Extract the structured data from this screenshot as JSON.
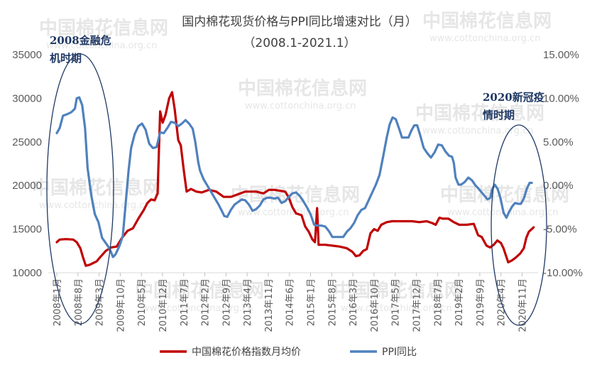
{
  "chart_data": {
    "type": "line",
    "title": "国内棉花现货价格与PPI同比增速对比（月）",
    "subtitle": "（2008.1-2021.1）",
    "watermark": {
      "main": "中国棉花信息网",
      "url": "www.cottonchina.org.cn"
    },
    "y_left": {
      "ticks": [
        "35000",
        "30000",
        "25000",
        "20000",
        "15000",
        "10000"
      ],
      "min": 10000,
      "max": 35000
    },
    "y_right": {
      "ticks": [
        "15.00%",
        "10.00%",
        "5.00%",
        "0.00%",
        "-5.00%",
        "-10.00%"
      ],
      "min": -10,
      "max": 15
    },
    "x_range": [
      2008.0,
      2021.0
    ],
    "x_ticks": [
      "2008年1月",
      "2008年8月",
      "2009年3月",
      "2009年10月",
      "2010年5月",
      "2010年12月",
      "2011年7月",
      "2012年2月",
      "2012年9月",
      "2013年4月",
      "2013年11月",
      "2014年6月",
      "2015年1月",
      "2015年8月",
      "2016年3月",
      "2016年10月",
      "2017年5月",
      "2017年12月",
      "2018年7月",
      "2019年2月",
      "2019年9月",
      "2020年4月",
      "2020年11月"
    ],
    "annotations": [
      {
        "text_lines": [
          "2008金融危",
          "机时期"
        ]
      },
      {
        "text_lines": [
          "2020新冠疫",
          "情时期"
        ]
      }
    ],
    "series": [
      {
        "name": "中国棉花价格指数月均价",
        "axis": "left",
        "color": "#C00000",
        "points": [
          [
            2008.0,
            13500
          ],
          [
            2008.08,
            13800
          ],
          [
            2008.25,
            13850
          ],
          [
            2008.45,
            13800
          ],
          [
            2008.55,
            13500
          ],
          [
            2008.65,
            12800
          ],
          [
            2008.72,
            11800
          ],
          [
            2008.8,
            10800
          ],
          [
            2008.9,
            10900
          ],
          [
            2009.0,
            11100
          ],
          [
            2009.1,
            11300
          ],
          [
            2009.2,
            11800
          ],
          [
            2009.35,
            12500
          ],
          [
            2009.5,
            12900
          ],
          [
            2009.65,
            13000
          ],
          [
            2009.8,
            14000
          ],
          [
            2009.95,
            14800
          ],
          [
            2010.1,
            15100
          ],
          [
            2010.25,
            16200
          ],
          [
            2010.4,
            17200
          ],
          [
            2010.5,
            18000
          ],
          [
            2010.6,
            18400
          ],
          [
            2010.7,
            18300
          ],
          [
            2010.78,
            19100
          ],
          [
            2010.85,
            28500
          ],
          [
            2010.92,
            27200
          ],
          [
            2011.0,
            28100
          ],
          [
            2011.1,
            30000
          ],
          [
            2011.18,
            30700
          ],
          [
            2011.25,
            28800
          ],
          [
            2011.35,
            25200
          ],
          [
            2011.42,
            24600
          ],
          [
            2011.5,
            21800
          ],
          [
            2011.58,
            19300
          ],
          [
            2011.7,
            19600
          ],
          [
            2011.85,
            19300
          ],
          [
            2012.0,
            19200
          ],
          [
            2012.2,
            19500
          ],
          [
            2012.4,
            19300
          ],
          [
            2012.6,
            18700
          ],
          [
            2012.8,
            18700
          ],
          [
            2013.0,
            19000
          ],
          [
            2013.2,
            19300
          ],
          [
            2013.5,
            19300
          ],
          [
            2013.7,
            19100
          ],
          [
            2013.85,
            19500
          ],
          [
            2014.0,
            19500
          ],
          [
            2014.15,
            19400
          ],
          [
            2014.3,
            19300
          ],
          [
            2014.4,
            18600
          ],
          [
            2014.5,
            17500
          ],
          [
            2014.6,
            16800
          ],
          [
            2014.75,
            16600
          ],
          [
            2014.85,
            15300
          ],
          [
            2014.95,
            14700
          ],
          [
            2015.05,
            13800
          ],
          [
            2015.12,
            13500
          ],
          [
            2015.18,
            17400
          ],
          [
            2015.22,
            13200
          ],
          [
            2015.4,
            13200
          ],
          [
            2015.6,
            13100
          ],
          [
            2015.8,
            13000
          ],
          [
            2016.0,
            12800
          ],
          [
            2016.15,
            12400
          ],
          [
            2016.25,
            11900
          ],
          [
            2016.35,
            12000
          ],
          [
            2016.45,
            12500
          ],
          [
            2016.55,
            12700
          ],
          [
            2016.65,
            14500
          ],
          [
            2016.75,
            15000
          ],
          [
            2016.85,
            14800
          ],
          [
            2016.95,
            15500
          ],
          [
            2017.1,
            15800
          ],
          [
            2017.25,
            15900
          ],
          [
            2017.45,
            15900
          ],
          [
            2017.6,
            15900
          ],
          [
            2017.8,
            15900
          ],
          [
            2018.0,
            15800
          ],
          [
            2018.2,
            15900
          ],
          [
            2018.35,
            15700
          ],
          [
            2018.45,
            15500
          ],
          [
            2018.55,
            16300
          ],
          [
            2018.65,
            16200
          ],
          [
            2018.8,
            16200
          ],
          [
            2018.95,
            15800
          ],
          [
            2019.1,
            15500
          ],
          [
            2019.3,
            15500
          ],
          [
            2019.5,
            15600
          ],
          [
            2019.62,
            14300
          ],
          [
            2019.72,
            14100
          ],
          [
            2019.85,
            13100
          ],
          [
            2019.95,
            12900
          ],
          [
            2020.05,
            13200
          ],
          [
            2020.15,
            13700
          ],
          [
            2020.25,
            13400
          ],
          [
            2020.32,
            12800
          ],
          [
            2020.4,
            11800
          ],
          [
            2020.45,
            11200
          ],
          [
            2020.55,
            11400
          ],
          [
            2020.65,
            11700
          ],
          [
            2020.78,
            12200
          ],
          [
            2020.88,
            12800
          ],
          [
            2020.95,
            14000
          ],
          [
            2021.02,
            14700
          ],
          [
            2021.1,
            15000
          ],
          [
            2021.15,
            15200
          ]
        ]
      },
      {
        "name": "PPI同比",
        "axis": "right",
        "color": "#4F81BD",
        "points": [
          [
            2008.0,
            6.0
          ],
          [
            2008.08,
            6.6
          ],
          [
            2008.17,
            8.0
          ],
          [
            2008.3,
            8.2
          ],
          [
            2008.4,
            8.4
          ],
          [
            2008.5,
            8.8
          ],
          [
            2008.55,
            10.0
          ],
          [
            2008.62,
            10.1
          ],
          [
            2008.7,
            9.2
          ],
          [
            2008.78,
            6.6
          ],
          [
            2008.85,
            2.0
          ],
          [
            2008.95,
            -1.1
          ],
          [
            2009.05,
            -3.3
          ],
          [
            2009.15,
            -4.2
          ],
          [
            2009.25,
            -6.0
          ],
          [
            2009.35,
            -6.6
          ],
          [
            2009.45,
            -7.2
          ],
          [
            2009.55,
            -8.2
          ],
          [
            2009.62,
            -7.9
          ],
          [
            2009.72,
            -7.0
          ],
          [
            2009.82,
            -5.8
          ],
          [
            2009.9,
            -2.1
          ],
          [
            2009.98,
            1.7
          ],
          [
            2010.05,
            4.3
          ],
          [
            2010.15,
            5.9
          ],
          [
            2010.25,
            6.8
          ],
          [
            2010.35,
            7.1
          ],
          [
            2010.45,
            6.4
          ],
          [
            2010.55,
            4.8
          ],
          [
            2010.65,
            4.3
          ],
          [
            2010.75,
            4.4
          ],
          [
            2010.85,
            6.1
          ],
          [
            2010.95,
            6.0
          ],
          [
            2011.05,
            6.6
          ],
          [
            2011.15,
            7.3
          ],
          [
            2011.25,
            7.2
          ],
          [
            2011.35,
            6.8
          ],
          [
            2011.45,
            7.1
          ],
          [
            2011.55,
            7.5
          ],
          [
            2011.65,
            7.1
          ],
          [
            2011.75,
            6.5
          ],
          [
            2011.82,
            5.0
          ],
          [
            2011.9,
            2.7
          ],
          [
            2011.95,
            1.7
          ],
          [
            2012.05,
            0.7
          ],
          [
            2012.15,
            0.0
          ],
          [
            2012.25,
            -0.7
          ],
          [
            2012.35,
            -1.4
          ],
          [
            2012.45,
            -2.1
          ],
          [
            2012.55,
            -2.9
          ],
          [
            2012.62,
            -3.5
          ],
          [
            2012.7,
            -3.6
          ],
          [
            2012.8,
            -2.8
          ],
          [
            2012.9,
            -2.2
          ],
          [
            2013.0,
            -1.9
          ],
          [
            2013.1,
            -1.6
          ],
          [
            2013.2,
            -1.7
          ],
          [
            2013.3,
            -2.2
          ],
          [
            2013.4,
            -2.9
          ],
          [
            2013.5,
            -2.7
          ],
          [
            2013.6,
            -2.3
          ],
          [
            2013.7,
            -1.6
          ],
          [
            2013.8,
            -1.4
          ],
          [
            2013.9,
            -1.4
          ],
          [
            2014.0,
            -1.5
          ],
          [
            2014.1,
            -1.4
          ],
          [
            2014.2,
            -2.0
          ],
          [
            2014.3,
            -1.8
          ],
          [
            2014.4,
            -1.3
          ],
          [
            2014.5,
            -0.9
          ],
          [
            2014.6,
            -0.8
          ],
          [
            2014.7,
            -1.2
          ],
          [
            2014.8,
            -1.8
          ],
          [
            2014.9,
            -2.5
          ],
          [
            2015.0,
            -3.3
          ],
          [
            2015.1,
            -4.5
          ],
          [
            2015.2,
            -4.6
          ],
          [
            2015.3,
            -4.6
          ],
          [
            2015.4,
            -4.7
          ],
          [
            2015.5,
            -5.2
          ],
          [
            2015.6,
            -5.9
          ],
          [
            2015.7,
            -5.9
          ],
          [
            2015.8,
            -5.9
          ],
          [
            2015.9,
            -5.9
          ],
          [
            2016.0,
            -5.3
          ],
          [
            2016.1,
            -4.9
          ],
          [
            2016.2,
            -4.3
          ],
          [
            2016.3,
            -3.4
          ],
          [
            2016.4,
            -2.8
          ],
          [
            2016.5,
            -2.6
          ],
          [
            2016.6,
            -1.7
          ],
          [
            2016.7,
            -0.8
          ],
          [
            2016.8,
            0.1
          ],
          [
            2016.9,
            1.2
          ],
          [
            2017.0,
            3.3
          ],
          [
            2017.1,
            5.5
          ],
          [
            2017.18,
            7.0
          ],
          [
            2017.26,
            7.8
          ],
          [
            2017.35,
            7.6
          ],
          [
            2017.45,
            6.4
          ],
          [
            2017.52,
            5.5
          ],
          [
            2017.62,
            5.5
          ],
          [
            2017.7,
            5.5
          ],
          [
            2017.78,
            6.3
          ],
          [
            2017.86,
            6.9
          ],
          [
            2017.94,
            6.9
          ],
          [
            2018.02,
            5.8
          ],
          [
            2018.12,
            4.3
          ],
          [
            2018.22,
            3.7
          ],
          [
            2018.32,
            3.2
          ],
          [
            2018.42,
            3.8
          ],
          [
            2018.52,
            4.7
          ],
          [
            2018.62,
            4.6
          ],
          [
            2018.72,
            3.9
          ],
          [
            2018.82,
            3.4
          ],
          [
            2018.9,
            3.3
          ],
          [
            2018.95,
            2.6
          ],
          [
            2019.0,
            0.9
          ],
          [
            2019.08,
            0.1
          ],
          [
            2019.15,
            0.1
          ],
          [
            2019.25,
            0.4
          ],
          [
            2019.35,
            0.9
          ],
          [
            2019.45,
            0.6
          ],
          [
            2019.55,
            0.0
          ],
          [
            2019.62,
            -0.3
          ],
          [
            2019.72,
            -0.8
          ],
          [
            2019.8,
            -1.2
          ],
          [
            2019.88,
            -1.6
          ],
          [
            2019.96,
            -1.4
          ],
          [
            2020.0,
            -0.5
          ],
          [
            2020.08,
            0.1
          ],
          [
            2020.16,
            -0.4
          ],
          [
            2020.24,
            -1.5
          ],
          [
            2020.32,
            -3.1
          ],
          [
            2020.4,
            -3.7
          ],
          [
            2020.48,
            -3.0
          ],
          [
            2020.56,
            -2.4
          ],
          [
            2020.64,
            -2.0
          ],
          [
            2020.72,
            -2.1
          ],
          [
            2020.8,
            -2.1
          ],
          [
            2020.88,
            -1.5
          ],
          [
            2020.96,
            -0.4
          ],
          [
            2021.04,
            0.3
          ],
          [
            2021.1,
            0.3
          ]
        ]
      }
    ]
  }
}
